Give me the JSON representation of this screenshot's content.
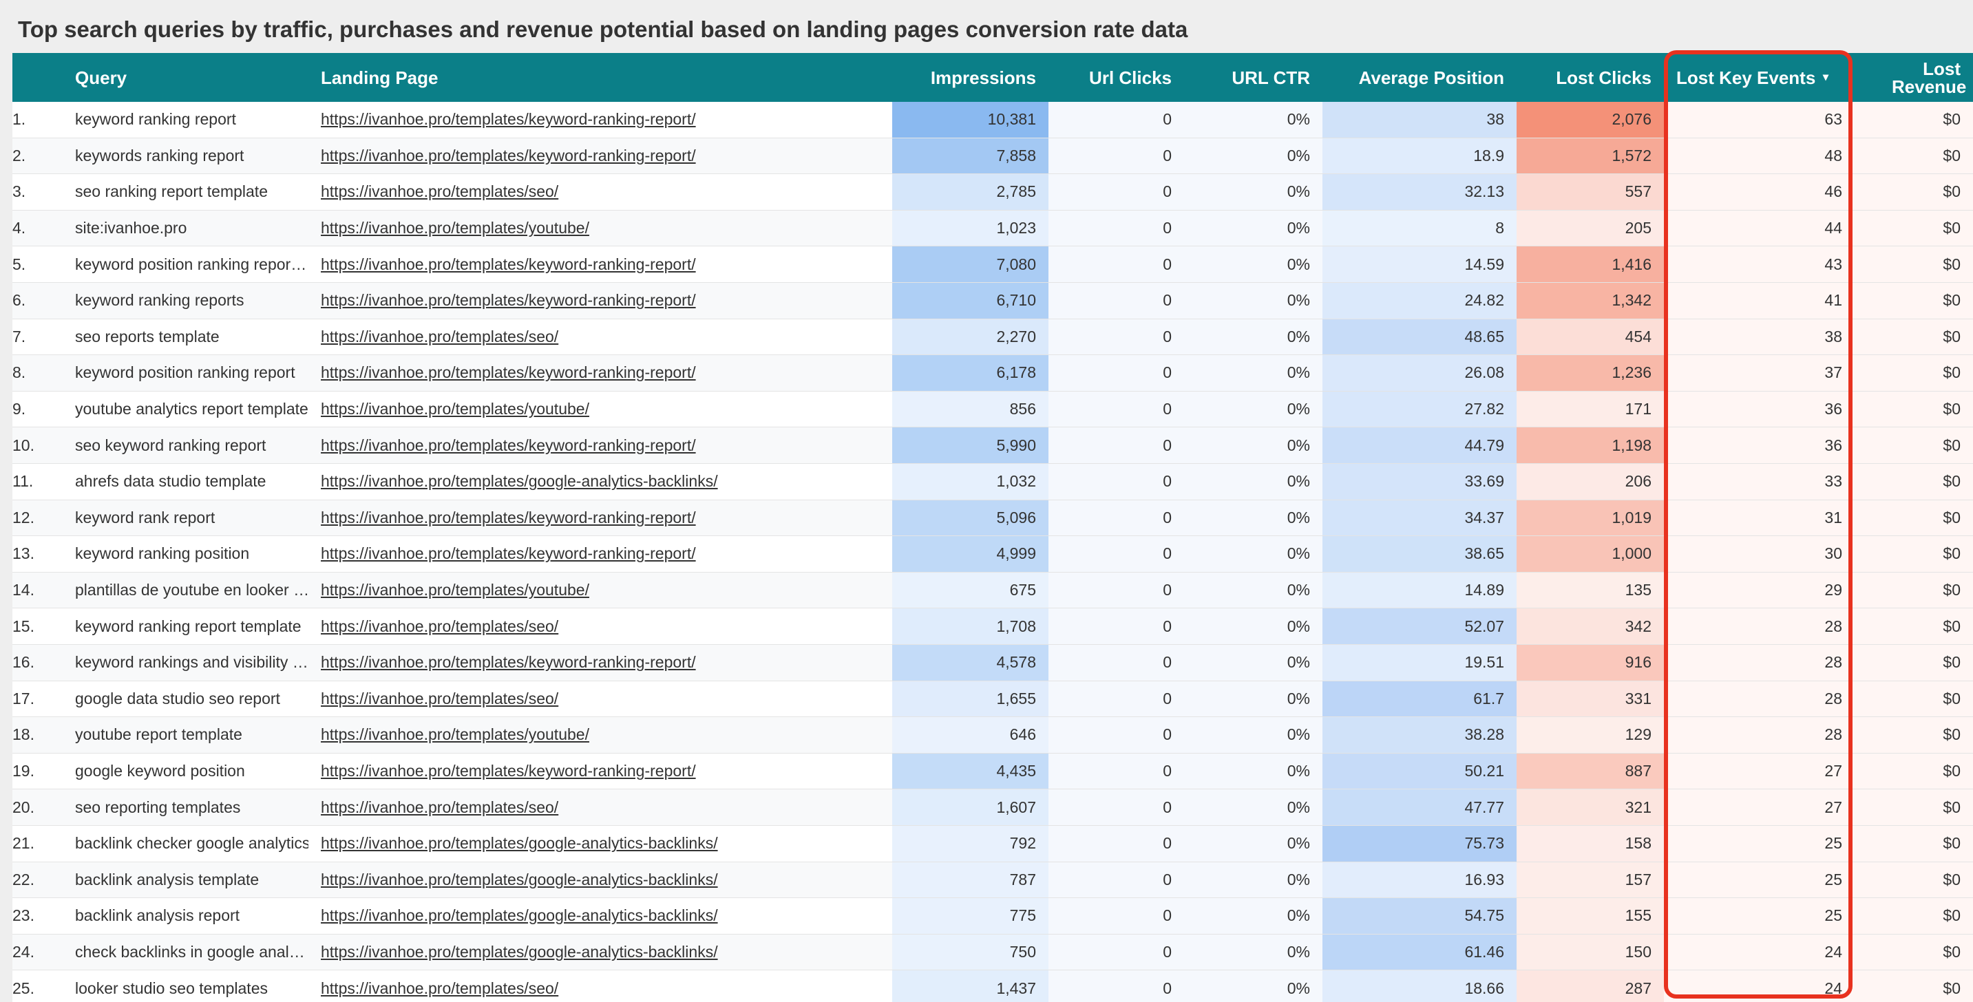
{
  "header": {
    "title": "Top search queries by traffic, purchases and revenue potential based on landing pages conversion rate data"
  },
  "table": {
    "headers": [
      "Query",
      "Landing Page",
      "Impressions",
      "Url Clicks",
      "URL CTR",
      "Average Position",
      "Lost Clicks",
      "Lost Key Events",
      "Lost Revenue"
    ],
    "rows": [
      [
        "1.",
        "keyword ranking report",
        "https://ivanhoe.pro/templates/keyword-ranking-report/",
        "10,381",
        "0",
        "0%",
        "38",
        "2,076",
        "63",
        "$0"
      ],
      [
        "2.",
        "keywords ranking report",
        "https://ivanhoe.pro/templates/keyword-ranking-report/",
        "7,858",
        "0",
        "0%",
        "18.9",
        "1,572",
        "48",
        "$0"
      ],
      [
        "3.",
        "seo ranking report template",
        "https://ivanhoe.pro/templates/seo/",
        "2,785",
        "0",
        "0%",
        "32.13",
        "557",
        "46",
        "$0"
      ],
      [
        "4.",
        "site:ivanhoe.pro",
        "https://ivanhoe.pro/templates/youtube/",
        "1,023",
        "0",
        "0%",
        "8",
        "205",
        "44",
        "$0"
      ],
      [
        "5.",
        "keyword position ranking repor…",
        "https://ivanhoe.pro/templates/keyword-ranking-report/",
        "7,080",
        "0",
        "0%",
        "14.59",
        "1,416",
        "43",
        "$0"
      ],
      [
        "6.",
        "keyword ranking reports",
        "https://ivanhoe.pro/templates/keyword-ranking-report/",
        "6,710",
        "0",
        "0%",
        "24.82",
        "1,342",
        "41",
        "$0"
      ],
      [
        "7.",
        "seo reports template",
        "https://ivanhoe.pro/templates/seo/",
        "2,270",
        "0",
        "0%",
        "48.65",
        "454",
        "38",
        "$0"
      ],
      [
        "8.",
        "keyword position ranking report",
        "https://ivanhoe.pro/templates/keyword-ranking-report/",
        "6,178",
        "0",
        "0%",
        "26.08",
        "1,236",
        "37",
        "$0"
      ],
      [
        "9.",
        "youtube analytics report template",
        "https://ivanhoe.pro/templates/youtube/",
        "856",
        "0",
        "0%",
        "27.82",
        "171",
        "36",
        "$0"
      ],
      [
        "10.",
        "seo keyword ranking report",
        "https://ivanhoe.pro/templates/keyword-ranking-report/",
        "5,990",
        "0",
        "0%",
        "44.79",
        "1,198",
        "36",
        "$0"
      ],
      [
        "11.",
        "ahrefs data studio template",
        "https://ivanhoe.pro/templates/google-analytics-backlinks/",
        "1,032",
        "0",
        "0%",
        "33.69",
        "206",
        "33",
        "$0"
      ],
      [
        "12.",
        "keyword rank report",
        "https://ivanhoe.pro/templates/keyword-ranking-report/",
        "5,096",
        "0",
        "0%",
        "34.37",
        "1,019",
        "31",
        "$0"
      ],
      [
        "13.",
        "keyword ranking position",
        "https://ivanhoe.pro/templates/keyword-ranking-report/",
        "4,999",
        "0",
        "0%",
        "38.65",
        "1,000",
        "30",
        "$0"
      ],
      [
        "14.",
        "plantillas de youtube en looker …",
        "https://ivanhoe.pro/templates/youtube/",
        "675",
        "0",
        "0%",
        "14.89",
        "135",
        "29",
        "$0"
      ],
      [
        "15.",
        "keyword ranking report template",
        "https://ivanhoe.pro/templates/seo/",
        "1,708",
        "0",
        "0%",
        "52.07",
        "342",
        "28",
        "$0"
      ],
      [
        "16.",
        "keyword rankings and visibility …",
        "https://ivanhoe.pro/templates/keyword-ranking-report/",
        "4,578",
        "0",
        "0%",
        "19.51",
        "916",
        "28",
        "$0"
      ],
      [
        "17.",
        "google data studio seo report",
        "https://ivanhoe.pro/templates/seo/",
        "1,655",
        "0",
        "0%",
        "61.7",
        "331",
        "28",
        "$0"
      ],
      [
        "18.",
        "youtube report template",
        "https://ivanhoe.pro/templates/youtube/",
        "646",
        "0",
        "0%",
        "38.28",
        "129",
        "28",
        "$0"
      ],
      [
        "19.",
        "google keyword position",
        "https://ivanhoe.pro/templates/keyword-ranking-report/",
        "4,435",
        "0",
        "0%",
        "50.21",
        "887",
        "27",
        "$0"
      ],
      [
        "20.",
        "seo reporting templates",
        "https://ivanhoe.pro/templates/seo/",
        "1,607",
        "0",
        "0%",
        "47.77",
        "321",
        "27",
        "$0"
      ],
      [
        "21.",
        "backlink checker google analytics",
        "https://ivanhoe.pro/templates/google-analytics-backlinks/",
        "792",
        "0",
        "0%",
        "75.73",
        "158",
        "25",
        "$0"
      ],
      [
        "22.",
        "backlink analysis template",
        "https://ivanhoe.pro/templates/google-analytics-backlinks/",
        "787",
        "0",
        "0%",
        "16.93",
        "157",
        "25",
        "$0"
      ],
      [
        "23.",
        "backlink analysis report",
        "https://ivanhoe.pro/templates/google-analytics-backlinks/",
        "775",
        "0",
        "0%",
        "54.75",
        "155",
        "25",
        "$0"
      ],
      [
        "24.",
        "check backlinks in google anal…",
        "https://ivanhoe.pro/templates/google-analytics-backlinks/",
        "750",
        "0",
        "0%",
        "61.46",
        "150",
        "24",
        "$0"
      ],
      [
        "25.",
        "looker studio seo templates",
        "https://ivanhoe.pro/templates/seo/",
        "1,437",
        "0",
        "0%",
        "18.66",
        "287",
        "24",
        "$0"
      ]
    ]
  }
}
